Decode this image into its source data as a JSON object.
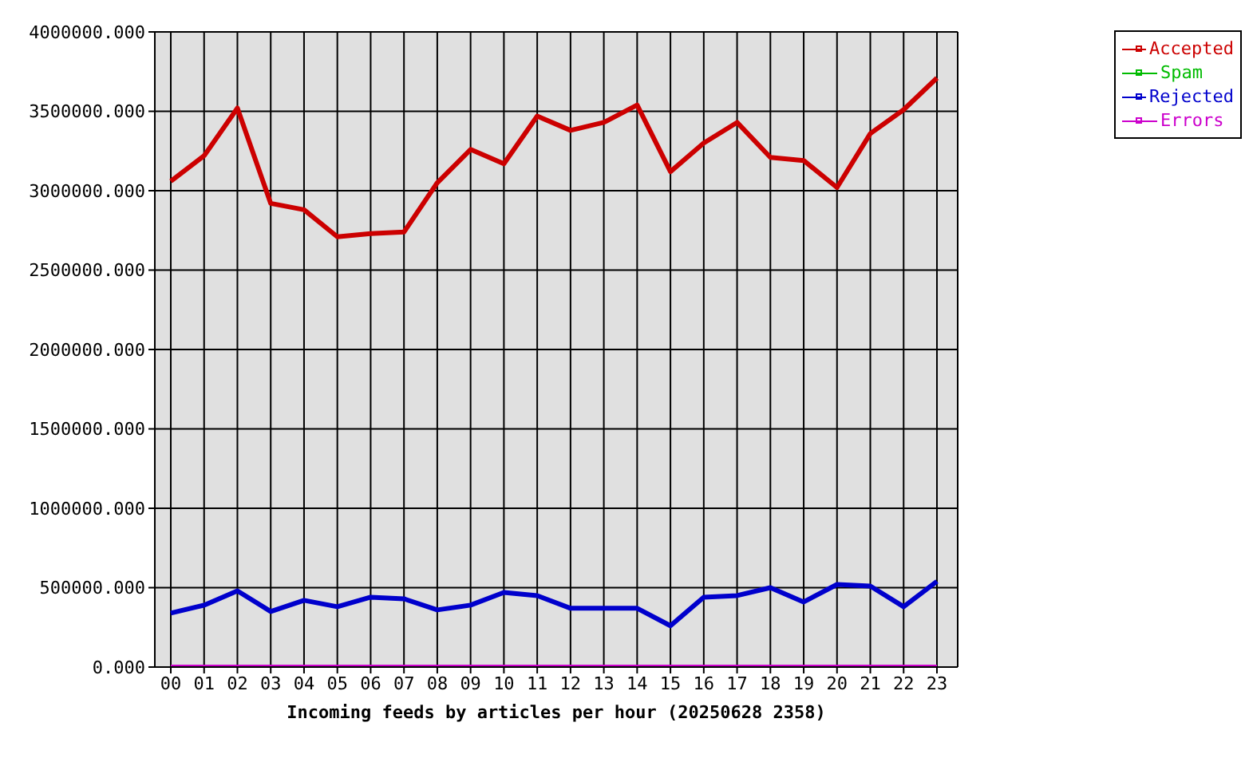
{
  "chart_data": {
    "type": "line",
    "xlabel": "Incoming feeds by articles per hour (20250628 2358)",
    "categories": [
      "00",
      "01",
      "02",
      "03",
      "04",
      "05",
      "06",
      "07",
      "08",
      "09",
      "10",
      "11",
      "12",
      "13",
      "14",
      "15",
      "16",
      "17",
      "18",
      "19",
      "20",
      "21",
      "22",
      "23"
    ],
    "series": [
      {
        "name": "Accepted",
        "color": "#cc0000",
        "values": [
          3060000,
          3220000,
          3520000,
          2920000,
          2880000,
          2710000,
          2730000,
          2740000,
          3050000,
          3260000,
          3170000,
          3470000,
          3380000,
          3430000,
          3540000,
          3120000,
          3300000,
          3430000,
          3210000,
          3190000,
          3020000,
          3360000,
          3510000,
          3710000
        ]
      },
      {
        "name": "Spam",
        "color": "#00bb00",
        "values": [
          null,
          null,
          null,
          null,
          null,
          null,
          null,
          null,
          null,
          null,
          null,
          null,
          null,
          null,
          null,
          null,
          null,
          null,
          null,
          null,
          null,
          null,
          null,
          null
        ]
      },
      {
        "name": "Rejected",
        "color": "#0000cc",
        "values": [
          340000,
          390000,
          480000,
          350000,
          420000,
          380000,
          440000,
          430000,
          360000,
          390000,
          470000,
          450000,
          370000,
          370000,
          370000,
          260000,
          440000,
          450000,
          500000,
          410000,
          520000,
          510000,
          380000,
          540000
        ]
      },
      {
        "name": "Errors",
        "color": "#cc00cc",
        "values": [
          0,
          0,
          0,
          0,
          0,
          0,
          0,
          0,
          0,
          0,
          0,
          0,
          0,
          0,
          0,
          0,
          0,
          0,
          0,
          0,
          0,
          0,
          0,
          0
        ]
      }
    ],
    "ylim": [
      0,
      4000000
    ],
    "yticks": [
      {
        "value": 0,
        "label": "0.000"
      },
      {
        "value": 500000,
        "label": "500000.000"
      },
      {
        "value": 1000000,
        "label": "1000000.000"
      },
      {
        "value": 1500000,
        "label": "1500000.000"
      },
      {
        "value": 2000000,
        "label": "2000000.000"
      },
      {
        "value": 2500000,
        "label": "2500000.000"
      },
      {
        "value": 3000000,
        "label": "3000000.000"
      },
      {
        "value": 3500000,
        "label": "3500000.000"
      },
      {
        "value": 4000000,
        "label": "4000000.000"
      }
    ],
    "grid": true,
    "legend": "top right",
    "marker": "none",
    "line_style": "solid"
  }
}
